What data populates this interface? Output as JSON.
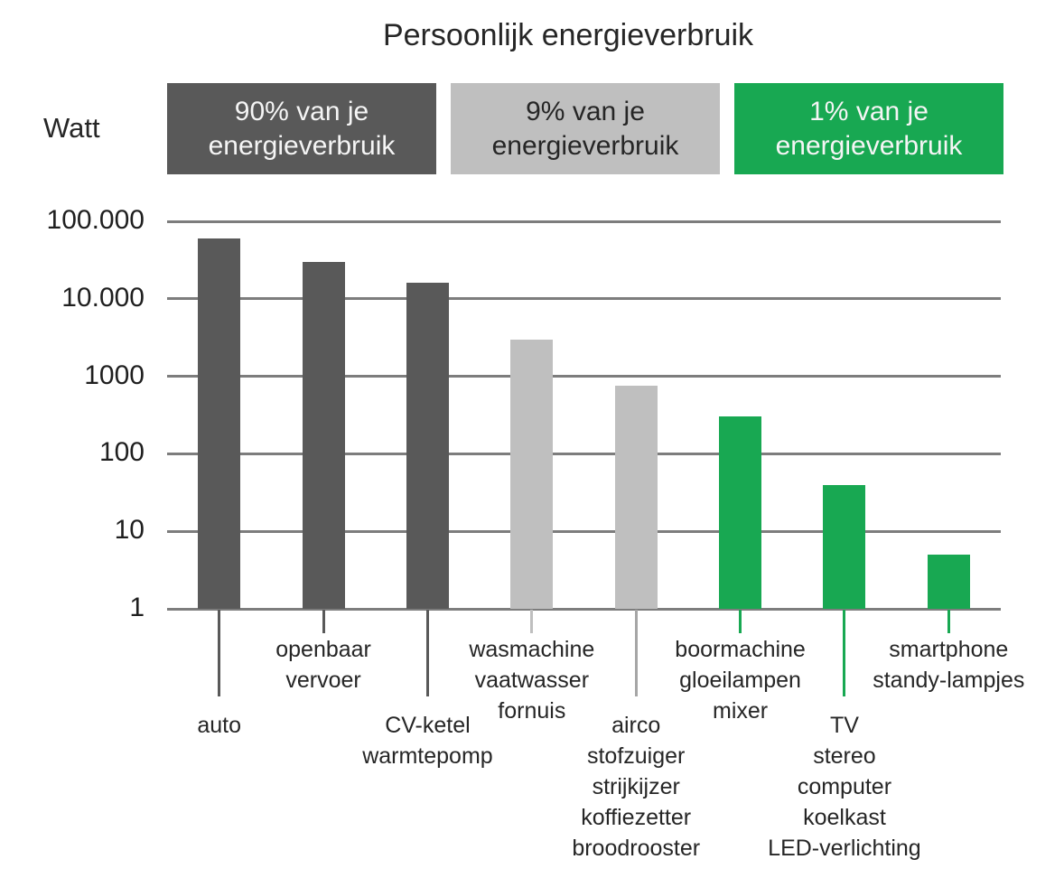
{
  "chart_data": {
    "type": "bar",
    "title": "Persoonlijk energieverbruik",
    "ylabel": "Watt",
    "y_scale": "log10",
    "ylim": [
      1,
      100000
    ],
    "y_ticks": [
      "100.000",
      "10.000",
      "1000",
      "100",
      "10",
      "1"
    ],
    "grid": true,
    "legend_position": "top",
    "legend": [
      {
        "line1": "90% van je",
        "line2": "energieverbruik",
        "fill": "#595959",
        "text": "#f5f5f5"
      },
      {
        "line1": "9% van je",
        "line2": "energieverbruik",
        "fill": "#bfbfbf",
        "text": "#262626"
      },
      {
        "line1": "1% van je",
        "line2": "energieverbruik",
        "fill": "#18a852",
        "text": "#f5f5f5"
      }
    ],
    "bars": [
      {
        "lines": [
          "auto"
        ],
        "value": 60000,
        "fill": "#595959",
        "tick": "#595959",
        "label_row": "low"
      },
      {
        "lines": [
          "openbaar",
          "vervoer"
        ],
        "value": 30000,
        "fill": "#595959",
        "tick": "#595959",
        "label_row": "high"
      },
      {
        "lines": [
          "CV-ketel",
          "warmtepomp"
        ],
        "value": 16000,
        "fill": "#595959",
        "tick": "#595959",
        "label_row": "low"
      },
      {
        "lines": [
          "wasmachine",
          "vaatwasser",
          "fornuis"
        ],
        "value": 3000,
        "fill": "#bfbfbf",
        "tick": "#bfbfbf",
        "label_row": "high"
      },
      {
        "lines": [
          "airco",
          "stofzuiger",
          "strijkijzer",
          "koffiezetter",
          "broodrooster"
        ],
        "value": 750,
        "fill": "#bfbfbf",
        "tick": "#a6a6a6",
        "label_row": "low"
      },
      {
        "lines": [
          "boormachine",
          "gloeilampen",
          "mixer"
        ],
        "value": 300,
        "fill": "#18a852",
        "tick": "#18a852",
        "label_row": "high"
      },
      {
        "lines": [
          "TV",
          "stereo",
          "computer",
          "koelkast",
          "LED-verlichting"
        ],
        "value": 40,
        "fill": "#18a852",
        "tick": "#18a852",
        "label_row": "low"
      },
      {
        "lines": [
          "smartphone",
          "standy-lampjes"
        ],
        "value": 5,
        "fill": "#18a852",
        "tick": "#18a852",
        "label_row": "high"
      }
    ],
    "colors": {
      "grid": "#7d7d7d",
      "axis_text": "#1f1f1f",
      "title_text": "#262626"
    }
  }
}
